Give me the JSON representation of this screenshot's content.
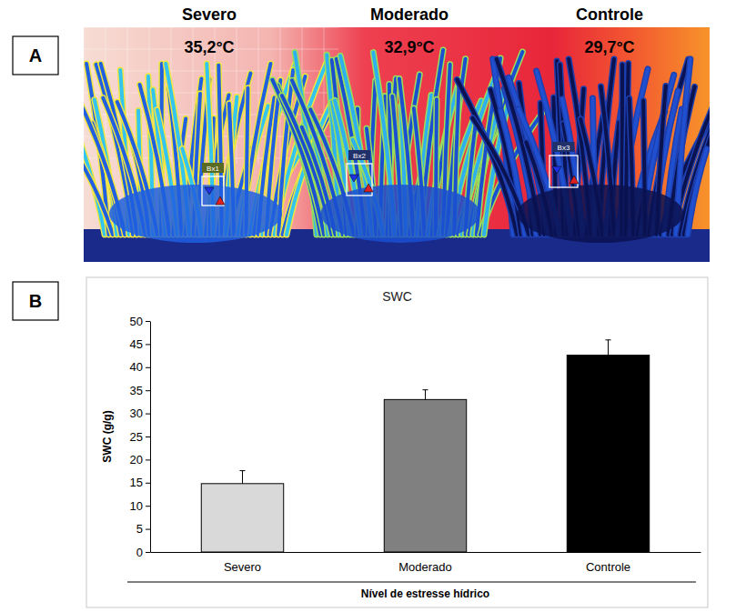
{
  "figure": {
    "panel_labels": [
      "A",
      "B"
    ],
    "thermal_image": {
      "groups": [
        {
          "name": "Severo",
          "temperature": "35,2°C",
          "box": "Bx1"
        },
        {
          "name": "Moderado",
          "temperature": "32,9°C",
          "box": "Bx2"
        },
        {
          "name": "Controle",
          "temperature": "29,7°C",
          "box": "Bx3"
        }
      ]
    }
  },
  "chart_data": {
    "type": "bar",
    "title": "SWC",
    "y_label": "SWC (g/g)",
    "x_label": "Nível de estresse hídrico",
    "categories": [
      "Severo",
      "Moderado",
      "Controle"
    ],
    "values": [
      14.8,
      33,
      42.6
    ],
    "errors": [
      2.8,
      2.1,
      3.3
    ],
    "colors": [
      "#d9d9d9",
      "#808080",
      "#000000"
    ],
    "ylim": [
      0,
      50
    ],
    "yticks": [
      0,
      5,
      10,
      15,
      20,
      25,
      30,
      35,
      40,
      45,
      50
    ],
    "grid": false
  }
}
